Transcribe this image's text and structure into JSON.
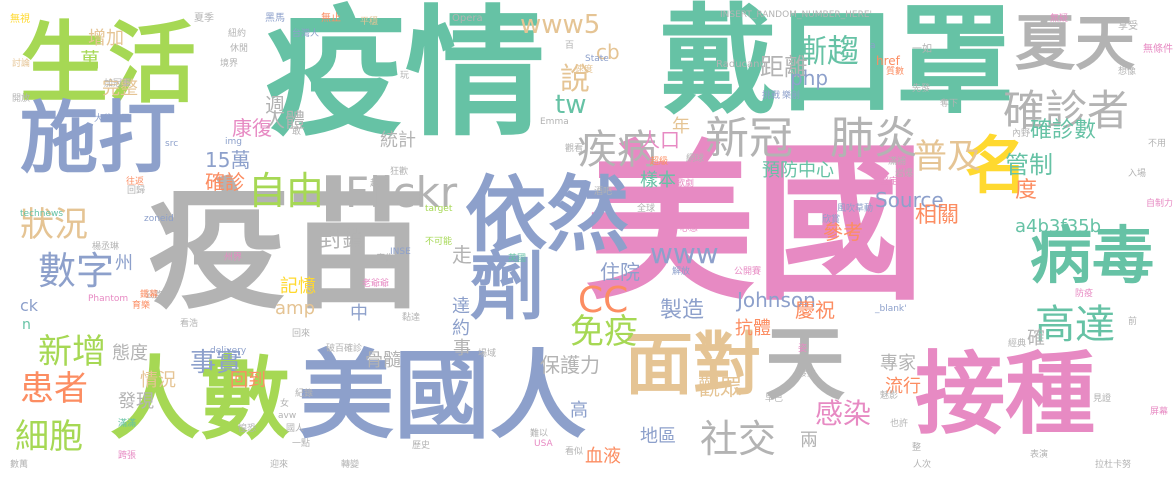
{
  "palette": {
    "green": "#a6d854",
    "teal": "#66c2a5",
    "blue": "#8da0cb",
    "pink": "#e78ac3",
    "orange": "#fc8d62",
    "yellow": "#ffd92f",
    "tan": "#e5c494",
    "gray": "#b3b3b3"
  },
  "words": [
    {
      "text": "美國",
      "color": "pink"
    },
    {
      "text": "疫情",
      "color": "teal"
    },
    {
      "text": "戴口罩",
      "color": "teal"
    },
    {
      "text": "疫苗",
      "color": "gray"
    },
    {
      "text": "生活",
      "color": "green"
    },
    {
      "text": "施打",
      "color": "blue"
    },
    {
      "text": "依然",
      "color": "blue"
    },
    {
      "text": "劑",
      "color": "blue"
    },
    {
      "text": "美國人",
      "color": "blue"
    },
    {
      "text": "人數",
      "color": "green"
    },
    {
      "text": "面對",
      "color": "tan"
    },
    {
      "text": "天",
      "color": "gray"
    },
    {
      "text": "接種",
      "color": "pink"
    },
    {
      "text": "夏天",
      "color": "gray"
    },
    {
      "text": "確診者",
      "color": "gray"
    },
    {
      "text": "名",
      "color": "yellow"
    },
    {
      "text": "病毒",
      "color": "teal"
    },
    {
      "text": "高達",
      "color": "teal"
    },
    {
      "text": "新冠",
      "color": "gray"
    },
    {
      "text": "肺炎",
      "color": "gray"
    },
    {
      "text": "疾病",
      "color": "gray"
    },
    {
      "text": "普及",
      "color": "tan"
    },
    {
      "text": "自由",
      "color": "green"
    },
    {
      "text": "Flickr",
      "color": "gray"
    },
    {
      "text": "狀況",
      "color": "tan"
    },
    {
      "text": "數字",
      "color": "blue"
    },
    {
      "text": "新增",
      "color": "green"
    },
    {
      "text": "患者",
      "color": "orange"
    },
    {
      "text": "細胞",
      "color": "green"
    },
    {
      "text": "technews",
      "color": "teal"
    },
    {
      "text": "漸趨",
      "color": "teal"
    },
    {
      "text": "免疫",
      "color": "green"
    },
    {
      "text": "CC",
      "color": "orange"
    },
    {
      "text": "www",
      "color": "blue"
    },
    {
      "text": "事實",
      "color": "blue"
    },
    {
      "text": "delivery",
      "color": "blue"
    },
    {
      "text": "感染",
      "color": "pink"
    },
    {
      "text": "社交",
      "color": "gray"
    },
    {
      "text": "觀眾",
      "color": "tan"
    },
    {
      "text": "平穩",
      "color": "tan"
    },
    {
      "text": "www5",
      "color": "tan"
    },
    {
      "text": "說",
      "color": "tan"
    },
    {
      "text": "tw",
      "color": "teal"
    },
    {
      "text": "距離",
      "color": "gray"
    },
    {
      "text": "cb",
      "color": "tan"
    },
    {
      "text": "php",
      "color": "blue"
    },
    {
      "text": "State",
      "color": "blue"
    },
    {
      "text": "速度",
      "color": "tan"
    },
    {
      "text": "Johnson",
      "color": "blue"
    },
    {
      "text": "Source",
      "color": "blue"
    },
    {
      "text": "確診數",
      "color": "teal"
    },
    {
      "text": "管制",
      "color": "teal"
    },
    {
      "text": "度",
      "color": "orange"
    },
    {
      "text": "相關",
      "color": "orange"
    },
    {
      "text": "a4b3f35b",
      "color": "teal"
    },
    {
      "text": "週",
      "color": "gray"
    },
    {
      "text": "增加",
      "color": "tan"
    },
    {
      "text": "完整",
      "color": "tan"
    },
    {
      "text": "萬",
      "color": "green"
    },
    {
      "text": "人體",
      "color": "gray"
    },
    {
      "text": "統計",
      "color": "gray"
    },
    {
      "text": "康復",
      "color": "pink"
    },
    {
      "text": "15萬",
      "color": "blue"
    },
    {
      "text": "確診",
      "color": "orange"
    },
    {
      "text": "人口",
      "color": "pink"
    },
    {
      "text": "年",
      "color": "tan"
    },
    {
      "text": "預防中心",
      "color": "teal"
    },
    {
      "text": "樣本",
      "color": "teal"
    },
    {
      "text": "封鎖",
      "color": "gray"
    },
    {
      "text": "州",
      "color": "blue"
    },
    {
      "text": "走",
      "color": "gray"
    },
    {
      "text": "住院",
      "color": "blue"
    },
    {
      "text": "參考",
      "color": "orange"
    },
    {
      "text": "記憶",
      "color": "yellow"
    },
    {
      "text": "amp",
      "color": "tan"
    },
    {
      "text": "中",
      "color": "blue"
    },
    {
      "text": "達",
      "color": "blue"
    },
    {
      "text": "約",
      "color": "blue"
    },
    {
      "text": "事",
      "color": "gray"
    },
    {
      "text": "製造",
      "color": "blue"
    },
    {
      "text": "抗體",
      "color": "orange"
    },
    {
      "text": "慶祝",
      "color": "orange"
    },
    {
      "text": "確",
      "color": "gray"
    },
    {
      "text": "態度",
      "color": "gray"
    },
    {
      "text": "骨髓",
      "color": "gray"
    },
    {
      "text": "保護力",
      "color": "gray"
    },
    {
      "text": "專家",
      "color": "gray"
    },
    {
      "text": "情況",
      "color": "tan"
    },
    {
      "text": "發現",
      "color": "gray"
    },
    {
      "text": "回到",
      "color": "orange"
    },
    {
      "text": "高",
      "color": "blue"
    },
    {
      "text": "地區",
      "color": "blue"
    },
    {
      "text": "血液",
      "color": "orange"
    },
    {
      "text": "流行",
      "color": "orange"
    },
    {
      "text": "兩",
      "color": "gray"
    },
    {
      "text": "ck",
      "color": "blue"
    },
    {
      "text": "n",
      "color": "teal"
    },
    {
      "text": "無視",
      "color": "yellow"
    },
    {
      "text": "夏季",
      "color": "gray"
    },
    {
      "text": "黑馬",
      "color": "blue"
    },
    {
      "text": "無止",
      "color": "orange"
    },
    {
      "text": "Opera",
      "color": "gray"
    },
    {
      "text": "INSERT_RANDOM_NUMBER_HERE'",
      "color": "gray"
    },
    {
      "text": "享受",
      "color": "gray"
    },
    {
      "text": "無疑",
      "color": "pink"
    },
    {
      "text": "無條件",
      "color": "pink"
    },
    {
      "text": "Raducanu",
      "color": "gray"
    },
    {
      "text": "一如",
      "color": "gray"
    },
    {
      "text": "href",
      "color": "orange"
    },
    {
      "text": "質數",
      "color": "orange"
    },
    {
      "text": "挑戰",
      "color": "blue"
    },
    {
      "text": "樂創",
      "color": "blue"
    },
    {
      "text": "想像",
      "color": "gray"
    },
    {
      "text": "先發",
      "color": "gray"
    },
    {
      "text": "奪下",
      "color": "gray"
    },
    {
      "text": "內野",
      "color": "gray"
    },
    {
      "text": "Emma",
      "color": "gray"
    },
    {
      "text": "大谷翔平",
      "color": "blue"
    },
    {
      "text": "開放",
      "color": "gray"
    },
    {
      "text": "討論",
      "color": "tan"
    },
    {
      "text": "src",
      "color": "blue"
    },
    {
      "text": "img",
      "color": "blue"
    },
    {
      "text": "境界",
      "color": "gray"
    },
    {
      "text": "休閒",
      "color": "gray"
    },
    {
      "text": "紐約",
      "color": "gray"
    },
    {
      "text": "台灣人",
      "color": "blue"
    },
    {
      "text": "往返",
      "color": "orange"
    },
    {
      "text": "回歸",
      "color": "gray"
    },
    {
      "text": "網球",
      "color": "gray"
    },
    {
      "text": "酒吧",
      "color": "gray"
    },
    {
      "text": "觀看",
      "color": "gray"
    },
    {
      "text": "超級",
      "color": "orange"
    },
    {
      "text": "歌劇",
      "color": "pink"
    },
    {
      "text": "全球",
      "color": "gray"
    },
    {
      "text": "滿補",
      "color": "gray"
    },
    {
      "text": "岩爆",
      "color": "gray"
    },
    {
      "text": "入場",
      "color": "gray"
    },
    {
      "text": "堅定",
      "color": "pink"
    },
    {
      "text": "自制力",
      "color": "pink"
    },
    {
      "text": "不用",
      "color": "gray"
    },
    {
      "text": "zoneid",
      "color": "blue"
    },
    {
      "text": "INSE",
      "color": "blue"
    },
    {
      "text": "target",
      "color": "green"
    },
    {
      "text": "不可能",
      "color": "green"
    },
    {
      "text": "心態",
      "color": "pink"
    },
    {
      "text": "解放",
      "color": "blue"
    },
    {
      "text": "公開賽",
      "color": "pink"
    },
    {
      "text": "風吹草動",
      "color": "blue"
    },
    {
      "text": "欣賞",
      "color": "blue"
    },
    {
      "text": "楊丞琳",
      "color": "gray"
    },
    {
      "text": "州界",
      "color": "pink"
    },
    {
      "text": "英國",
      "color": "teal"
    },
    {
      "text": "公路",
      "color": "gray"
    },
    {
      "text": "育樂",
      "color": "orange"
    },
    {
      "text": "鐵幕",
      "color": "orange"
    },
    {
      "text": "看浩",
      "color": "gray"
    },
    {
      "text": "老爺爺",
      "color": "pink"
    },
    {
      "text": "黏達",
      "color": "gray"
    },
    {
      "text": "破百確診",
      "color": "gray"
    },
    {
      "text": "場域",
      "color": "gray"
    },
    {
      "text": "Phantom",
      "color": "pink"
    },
    {
      "text": "_blank'",
      "color": "blue"
    },
    {
      "text": "防疫",
      "color": "pink"
    },
    {
      "text": "前",
      "color": "gray"
    },
    {
      "text": "經典",
      "color": "gray"
    },
    {
      "text": "發生",
      "color": "gray"
    },
    {
      "text": "魅影",
      "color": "gray"
    },
    {
      "text": "見證",
      "color": "gray"
    },
    {
      "text": "滿滿",
      "color": "teal"
    },
    {
      "text": "惶恐",
      "color": "gray"
    },
    {
      "text": "國人",
      "color": "gray"
    },
    {
      "text": "avw",
      "color": "gray"
    },
    {
      "text": "女",
      "color": "gray"
    },
    {
      "text": "紀錄",
      "color": "gray"
    },
    {
      "text": "一點",
      "color": "gray"
    },
    {
      "text": "歷史",
      "color": "gray"
    },
    {
      "text": "難以",
      "color": "gray"
    },
    {
      "text": "USA",
      "color": "pink"
    },
    {
      "text": "看似",
      "color": "gray"
    },
    {
      "text": "早已",
      "color": "gray"
    },
    {
      "text": "也許",
      "color": "gray"
    },
    {
      "text": "整",
      "color": "gray"
    },
    {
      "text": "屏幕",
      "color": "pink"
    },
    {
      "text": "表演",
      "color": "gray"
    },
    {
      "text": "拉杜卡努",
      "color": "gray"
    },
    {
      "text": "人次",
      "color": "gray"
    },
    {
      "text": "數萬",
      "color": "gray"
    },
    {
      "text": "跨張",
      "color": "pink"
    },
    {
      "text": "迎來",
      "color": "gray"
    },
    {
      "text": "轉變",
      "color": "gray"
    },
    {
      "text": "百",
      "color": "gray"
    },
    {
      "text": "a",
      "color": "blue"
    },
    {
      "text": "姿",
      "color": "pink"
    },
    {
      "text": "回來",
      "color": "gray"
    },
    {
      "text": "廣告",
      "color": "gray"
    },
    {
      "text": "狂歡",
      "color": "gray"
    },
    {
      "text": "敢",
      "color": "gray"
    },
    {
      "text": "玩",
      "color": "gray"
    },
    {
      "text": "趙",
      "color": "gray"
    },
    {
      "text": "加冠軍",
      "color": "gray"
    }
  ]
}
